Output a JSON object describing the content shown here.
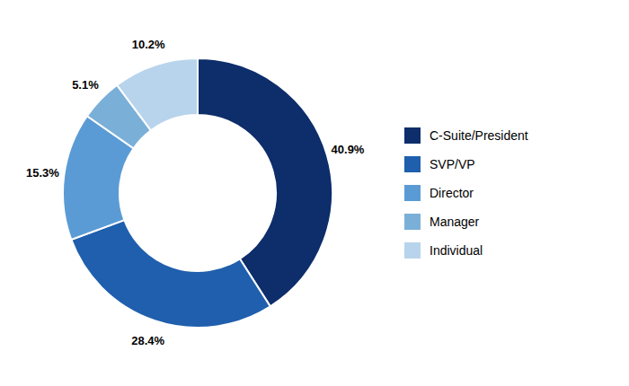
{
  "chart_data": {
    "type": "donut",
    "categories": [
      "C-Suite/President",
      "SVP/VP",
      "Director",
      "Manager",
      "Individual"
    ],
    "values": [
      40.9,
      28.4,
      15.3,
      5.1,
      10.2
    ],
    "value_labels": [
      "40.9%",
      "28.4%",
      "15.3%",
      "5.1%",
      "10.2%"
    ],
    "colors": [
      "#0d2d6b",
      "#1f5fad",
      "#5b9bd5",
      "#7ab0d8",
      "#b8d4ec"
    ],
    "data_labels": true,
    "legend": "right"
  }
}
